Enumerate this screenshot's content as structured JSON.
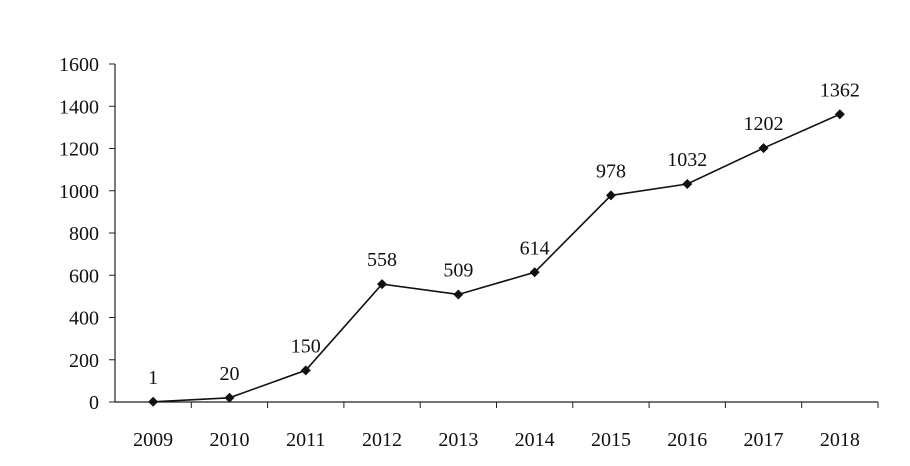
{
  "chart_data": {
    "type": "line",
    "title": "",
    "xlabel": "",
    "ylabel": "",
    "categories": [
      "2009",
      "2010",
      "2011",
      "2012",
      "2013",
      "2014",
      "2015",
      "2016",
      "2017",
      "2018"
    ],
    "series": [
      {
        "values": [
          1,
          20,
          150,
          558,
          509,
          614,
          978,
          1032,
          1202,
          1362
        ],
        "labels": [
          "1",
          "20",
          "150",
          "558",
          "509",
          "614",
          "978",
          "1032",
          "1202",
          "1362"
        ],
        "marker": "diamond",
        "color": "#111111"
      }
    ],
    "ylim": [
      0,
      1600
    ],
    "yticks": [
      "0",
      "200",
      "400",
      "600",
      "800",
      "1000",
      "1200",
      "1400",
      "1600"
    ],
    "grid": false,
    "legend": "none"
  }
}
